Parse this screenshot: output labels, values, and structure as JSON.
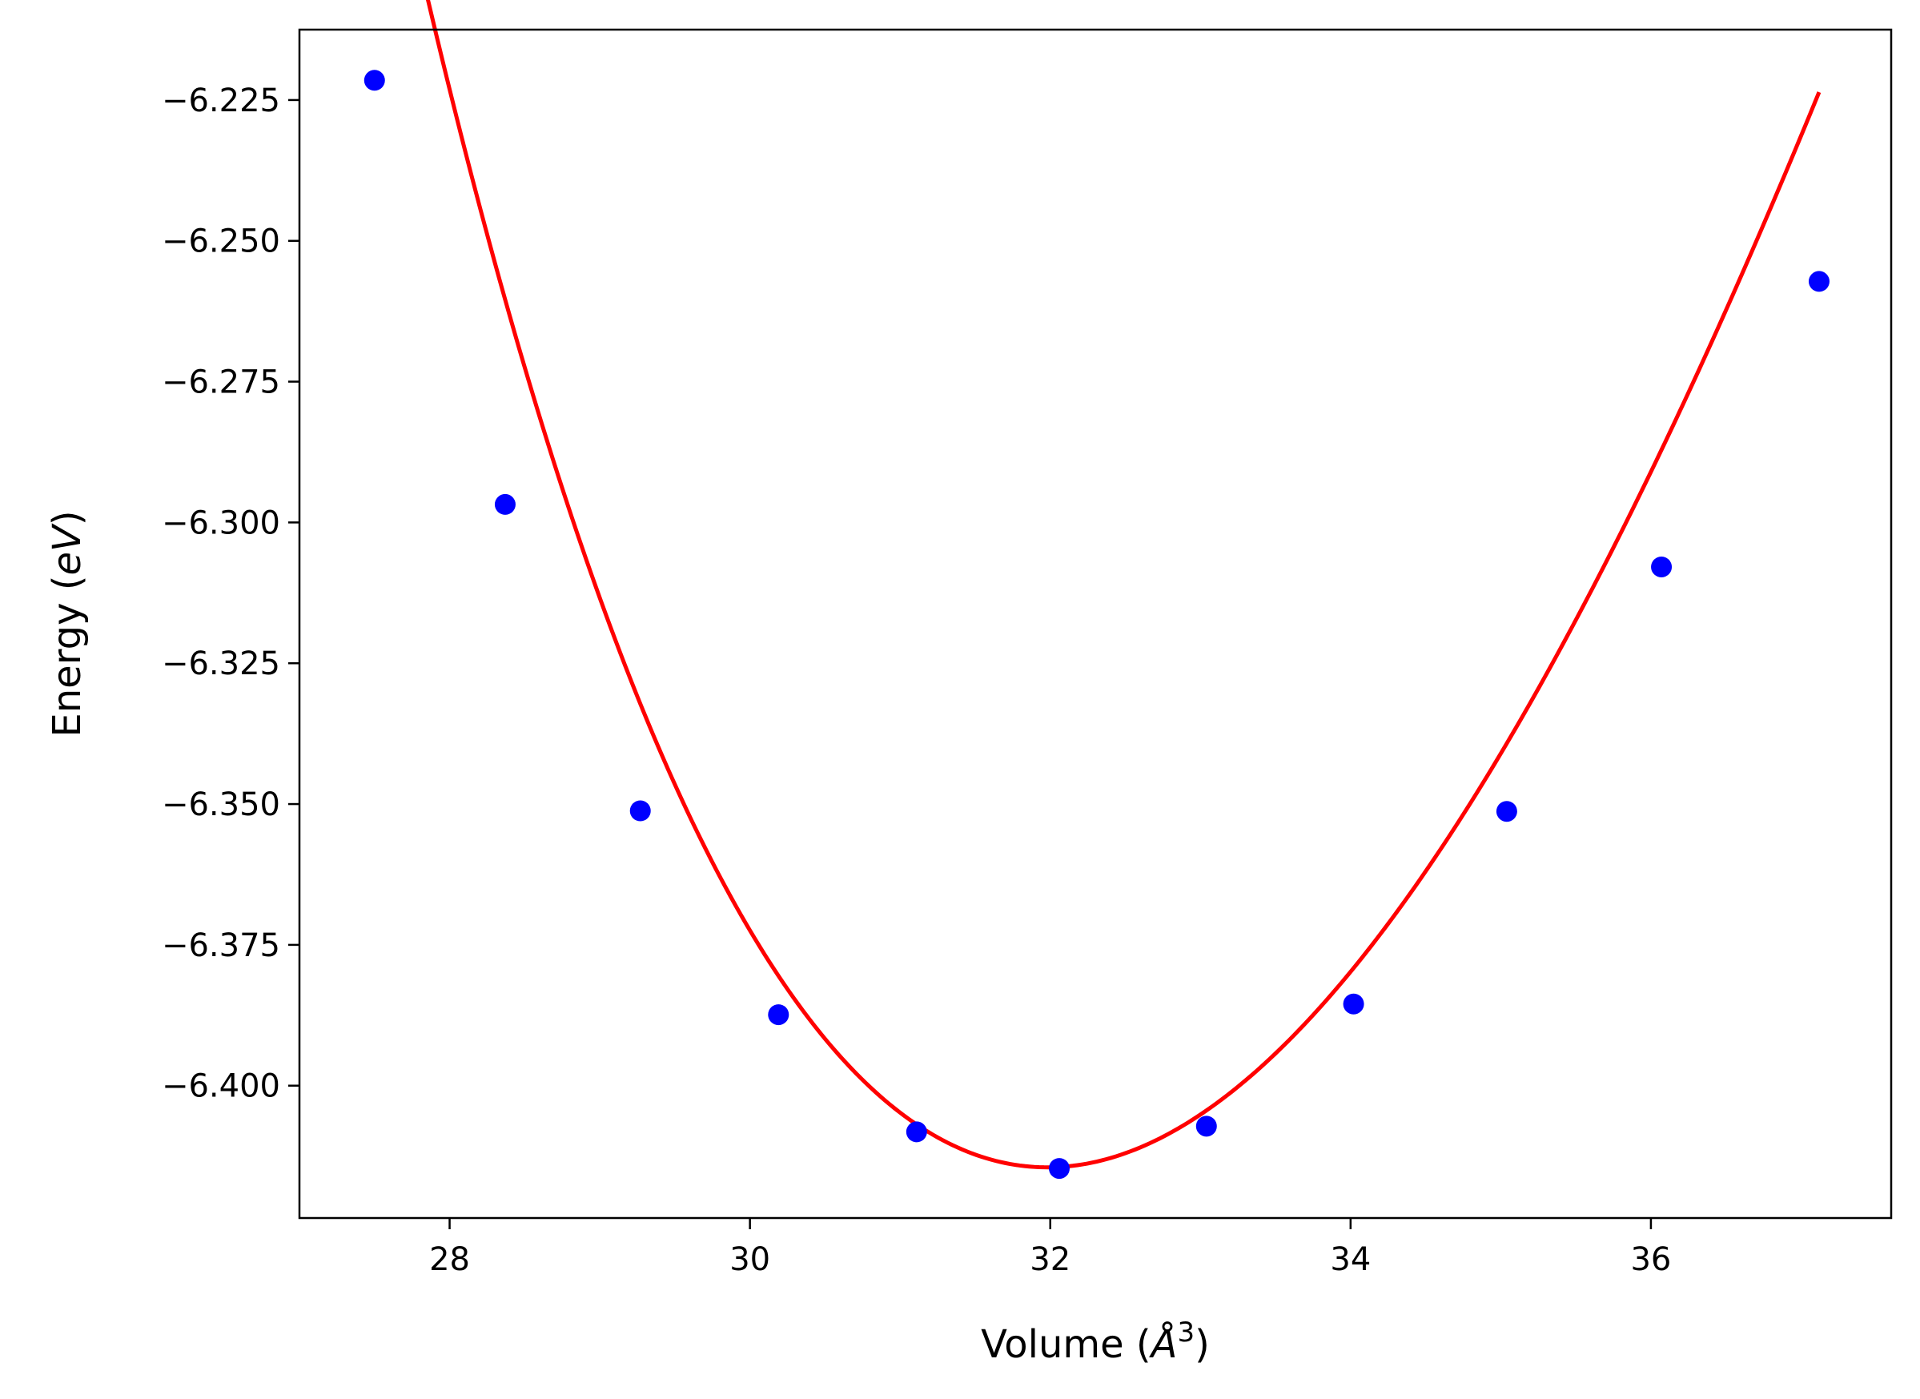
{
  "chart_data": {
    "type": "scatter",
    "title": "",
    "xlabel": "Volume (Å³)",
    "ylabel": "Energy (eV)",
    "xlabel_parts": {
      "prefix": "Volume (",
      "unit": "Å",
      "power": "3",
      "suffix": ")"
    },
    "ylabel_parts": {
      "prefix": "Energy (",
      "unit": "eV",
      "suffix": ")"
    },
    "xlim": [
      27.0,
      37.6
    ],
    "ylim": [
      -6.4235,
      -6.2125
    ],
    "xticks": [
      28,
      30,
      32,
      34,
      36
    ],
    "xtick_labels": [
      "28",
      "30",
      "32",
      "34",
      "36"
    ],
    "yticks": [
      -6.225,
      -6.25,
      -6.275,
      -6.3,
      -6.325,
      -6.35,
      -6.375,
      -6.4
    ],
    "ytick_labels": [
      "−6.225",
      "−6.250",
      "−6.275",
      "−6.300",
      "−6.325",
      "−6.350",
      "−6.375",
      "−6.400"
    ],
    "grid": false,
    "legend": "none",
    "series": [
      {
        "name": "data",
        "style": "markers",
        "color": "#0000ff",
        "x": [
          27.5,
          28.37,
          29.27,
          30.19,
          31.11,
          32.06,
          33.04,
          34.02,
          35.04,
          36.07,
          37.12
        ],
        "y": [
          -6.2215,
          -6.2968,
          -6.3512,
          -6.3874,
          -6.4082,
          -6.4147,
          -6.4072,
          -6.3855,
          -6.3513,
          -6.3079,
          -6.2572
        ]
      },
      {
        "name": "fit",
        "style": "line",
        "color": "#ff0000",
        "fit": {
          "E0": -6.4145,
          "V0": 31.98,
          "a": 0.00955,
          "b": -0.000556,
          "c": 2.02e-05
        },
        "x_range": [
          27.5,
          37.12
        ]
      }
    ]
  }
}
